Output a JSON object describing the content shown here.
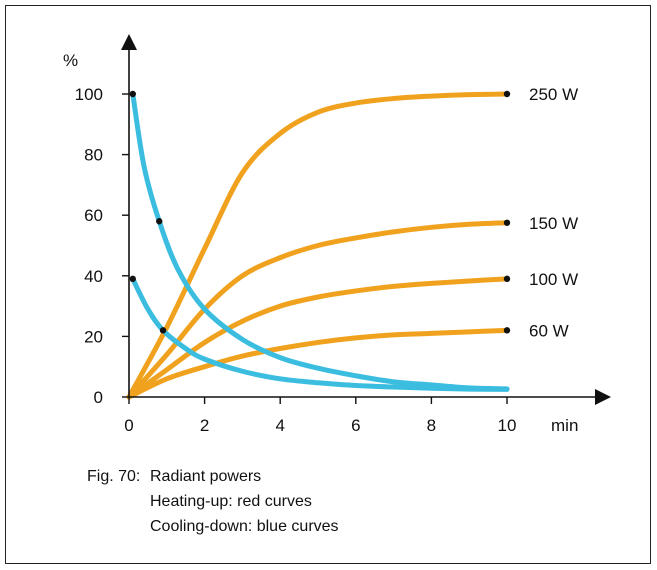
{
  "caption": {
    "figure_label": "Fig. 70:",
    "title": "Radiant powers",
    "line2": "Heating-up: red curves",
    "line3": "Cooling-down: blue curves"
  },
  "colors": {
    "heating": "#f0a21e",
    "cooling": "#3bbde0",
    "axis": "#111111"
  },
  "chart_data": {
    "type": "line",
    "ylabel": "%",
    "xlabel": "min",
    "xlim": [
      0,
      11.5
    ],
    "ylim": [
      0,
      108
    ],
    "xticks": [
      0,
      2,
      4,
      6,
      8,
      10
    ],
    "yticks": [
      0,
      20,
      40,
      60,
      80,
      100
    ],
    "grid": false,
    "series": [
      {
        "name": "250 W",
        "group": "heating",
        "points": [
          [
            0,
            0
          ],
          [
            1,
            23
          ],
          [
            2,
            49
          ],
          [
            3,
            74
          ],
          [
            4,
            87
          ],
          [
            5,
            94
          ],
          [
            6,
            97
          ],
          [
            7,
            98.5
          ],
          [
            8,
            99.3
          ],
          [
            9,
            99.8
          ],
          [
            10,
            100
          ]
        ]
      },
      {
        "name": "150 W",
        "group": "heating",
        "points": [
          [
            0,
            0
          ],
          [
            1,
            14
          ],
          [
            2,
            29
          ],
          [
            3,
            40
          ],
          [
            4,
            46
          ],
          [
            5,
            50
          ],
          [
            6,
            52.5
          ],
          [
            7,
            54.5
          ],
          [
            8,
            56
          ],
          [
            9,
            57
          ],
          [
            10,
            57.5
          ]
        ]
      },
      {
        "name": "100 W",
        "group": "heating",
        "points": [
          [
            0,
            0
          ],
          [
            1,
            9
          ],
          [
            2,
            18
          ],
          [
            3,
            25
          ],
          [
            4,
            30
          ],
          [
            5,
            33
          ],
          [
            6,
            35
          ],
          [
            7,
            36.5
          ],
          [
            8,
            37.5
          ],
          [
            9,
            38.3
          ],
          [
            10,
            39
          ]
        ]
      },
      {
        "name": "60 W",
        "group": "heating",
        "points": [
          [
            0,
            0
          ],
          [
            1,
            6
          ],
          [
            2,
            10
          ],
          [
            3,
            13.5
          ],
          [
            4,
            16
          ],
          [
            5,
            18
          ],
          [
            6,
            19.5
          ],
          [
            7,
            20.5
          ],
          [
            8,
            21
          ],
          [
            9,
            21.5
          ],
          [
            10,
            22
          ]
        ]
      },
      {
        "name": "",
        "group": "cooling",
        "points": [
          [
            0.1,
            100
          ],
          [
            0.4,
            76
          ],
          [
            0.8,
            58
          ],
          [
            1.3,
            42
          ],
          [
            2,
            29
          ],
          [
            3,
            19
          ],
          [
            4,
            13
          ],
          [
            5,
            9.5
          ],
          [
            6,
            7
          ],
          [
            7,
            5
          ],
          [
            8,
            4
          ],
          [
            9,
            3
          ],
          [
            10,
            2.7
          ]
        ]
      },
      {
        "name": "",
        "group": "cooling",
        "points": [
          [
            0.1,
            39
          ],
          [
            0.5,
            29
          ],
          [
            0.9,
            22
          ],
          [
            1.5,
            16
          ],
          [
            2,
            12.5
          ],
          [
            3,
            8.5
          ],
          [
            4,
            6
          ],
          [
            5,
            4.7
          ],
          [
            6,
            3.8
          ],
          [
            7,
            3.3
          ],
          [
            8,
            2.9
          ],
          [
            9,
            2.6
          ],
          [
            10,
            2.5
          ]
        ]
      }
    ],
    "markers": [
      {
        "x": 10,
        "y": 100
      },
      {
        "x": 10,
        "y": 57.5
      },
      {
        "x": 10,
        "y": 39
      },
      {
        "x": 10,
        "y": 22
      },
      {
        "x": 0.1,
        "y": 100
      },
      {
        "x": 0.8,
        "y": 58
      },
      {
        "x": 0.1,
        "y": 39
      },
      {
        "x": 0.9,
        "y": 22
      }
    ]
  }
}
